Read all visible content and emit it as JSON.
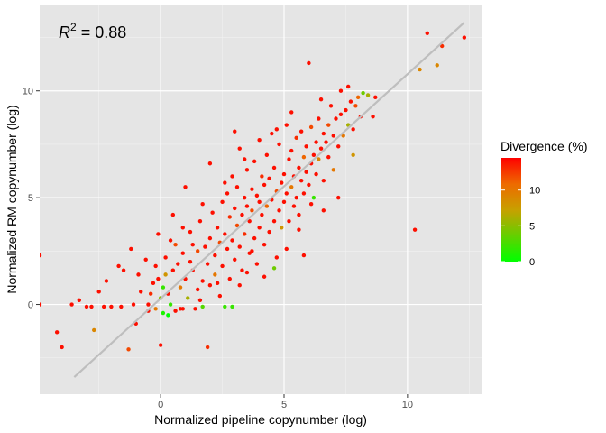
{
  "chart_data": {
    "type": "scatter",
    "xlabel": "Normalized pipeline copynumber (log)",
    "ylabel": "Normalized RM copynumber (log)",
    "xlim": [
      -4.9,
      13.0
    ],
    "ylim": [
      -4.2,
      14.0
    ],
    "x_ticks": [
      0,
      5,
      10
    ],
    "y_ticks": [
      0,
      5,
      10
    ],
    "x_tick_labels": [
      "0",
      "5",
      "10"
    ],
    "y_tick_labels": [
      "0",
      "5",
      "10"
    ],
    "grid": true,
    "background": "#e5e5e5",
    "annotation": {
      "base": "R",
      "sup": "2",
      "value": " = 0.88"
    },
    "fit_line": {
      "from": [
        -3.5,
        -3.4
      ],
      "to": [
        12.3,
        13.2
      ],
      "color": "#bebebe"
    },
    "legend": {
      "title": "Divergence (%)",
      "placement": "right",
      "range": [
        0,
        14.5
      ],
      "ticks": [
        0,
        5,
        10
      ],
      "tick_labels": [
        "0",
        "5",
        "10"
      ],
      "colors": [
        "#00ff00",
        "#ff0000"
      ]
    },
    "points": [
      [
        -4.9,
        2.3,
        14
      ],
      [
        -4.9,
        0.0,
        14
      ],
      [
        -4.2,
        -1.3,
        14
      ],
      [
        -4.0,
        -2.0,
        14
      ],
      [
        -3.3,
        0.2,
        14
      ],
      [
        -3.0,
        -0.1,
        14
      ],
      [
        -2.8,
        -0.1,
        14
      ],
      [
        -2.7,
        -1.2,
        9
      ],
      [
        -2.5,
        0.6,
        14
      ],
      [
        -2.3,
        -0.1,
        14
      ],
      [
        -2.0,
        -0.1,
        14
      ],
      [
        -1.7,
        1.8,
        14
      ],
      [
        -1.5,
        1.6,
        14
      ],
      [
        -1.6,
        -0.1,
        14
      ],
      [
        -1.3,
        -2.1,
        12
      ],
      [
        -1.1,
        0.0,
        14
      ],
      [
        -1.0,
        -0.9,
        14
      ],
      [
        -0.8,
        0.6,
        14
      ],
      [
        -0.6,
        2.1,
        14
      ],
      [
        -0.5,
        0.0,
        14
      ],
      [
        -0.4,
        0.5,
        13
      ],
      [
        -0.3,
        1.0,
        14
      ],
      [
        -0.2,
        -0.2,
        10
      ],
      [
        -0.1,
        1.2,
        14
      ],
      [
        -0.1,
        3.3,
        14
      ],
      [
        0.0,
        -1.9,
        14
      ],
      [
        0.0,
        0.3,
        5
      ],
      [
        0.1,
        -0.4,
        1
      ],
      [
        0.1,
        0.8,
        2
      ],
      [
        0.2,
        2.2,
        14
      ],
      [
        0.2,
        1.4,
        8
      ],
      [
        0.3,
        0.5,
        14
      ],
      [
        0.4,
        3.0,
        14
      ],
      [
        0.4,
        0.0,
        2
      ],
      [
        0.5,
        1.6,
        14
      ],
      [
        0.6,
        2.8,
        12
      ],
      [
        0.6,
        -0.3,
        14
      ],
      [
        0.7,
        1.9,
        14
      ],
      [
        0.8,
        0.8,
        10
      ],
      [
        0.9,
        2.4,
        14
      ],
      [
        0.9,
        -0.2,
        14
      ],
      [
        1.0,
        1.2,
        14
      ],
      [
        1.1,
        0.3,
        6
      ],
      [
        1.2,
        3.4,
        14
      ],
      [
        1.2,
        2.0,
        14
      ],
      [
        1.3,
        1.6,
        14
      ],
      [
        1.4,
        -0.2,
        14
      ],
      [
        1.5,
        2.5,
        12
      ],
      [
        1.5,
        0.7,
        14
      ],
      [
        1.6,
        3.9,
        14
      ],
      [
        1.7,
        1.1,
        14
      ],
      [
        1.7,
        -0.1,
        3
      ],
      [
        1.8,
        2.7,
        14
      ],
      [
        1.9,
        1.9,
        14
      ],
      [
        1.9,
        -2.0,
        13
      ],
      [
        2.0,
        3.1,
        14
      ],
      [
        2.0,
        0.9,
        14
      ],
      [
        2.1,
        4.3,
        14
      ],
      [
        2.2,
        2.3,
        14
      ],
      [
        2.2,
        1.4,
        10
      ],
      [
        2.3,
        3.6,
        14
      ],
      [
        2.4,
        0.4,
        14
      ],
      [
        2.4,
        2.9,
        12
      ],
      [
        2.5,
        4.8,
        14
      ],
      [
        2.5,
        1.8,
        14
      ],
      [
        2.6,
        3.3,
        14
      ],
      [
        2.6,
        -0.1,
        2
      ],
      [
        2.7,
        2.6,
        14
      ],
      [
        2.7,
        5.2,
        14
      ],
      [
        2.8,
        4.1,
        13
      ],
      [
        2.8,
        1.2,
        14
      ],
      [
        2.9,
        3.0,
        14
      ],
      [
        2.9,
        6.0,
        14
      ],
      [
        3.0,
        4.5,
        14
      ],
      [
        3.0,
        2.1,
        14
      ],
      [
        3.1,
        3.7,
        12
      ],
      [
        3.1,
        5.5,
        14
      ],
      [
        3.2,
        2.7,
        14
      ],
      [
        3.2,
        7.3,
        14
      ],
      [
        3.3,
        4.2,
        14
      ],
      [
        3.3,
        1.6,
        14
      ],
      [
        3.4,
        5.0,
        14
      ],
      [
        3.4,
        3.3,
        13
      ],
      [
        3.5,
        4.6,
        14
      ],
      [
        3.5,
        6.3,
        14
      ],
      [
        3.6,
        2.4,
        14
      ],
      [
        3.6,
        3.9,
        14
      ],
      [
        3.7,
        5.4,
        14
      ],
      [
        3.7,
        4.4,
        12
      ],
      [
        3.8,
        3.1,
        14
      ],
      [
        3.8,
        6.7,
        14
      ],
      [
        3.9,
        5.1,
        14
      ],
      [
        3.9,
        1.9,
        14
      ],
      [
        4.0,
        4.8,
        14
      ],
      [
        4.0,
        3.6,
        14
      ],
      [
        4.1,
        6.0,
        13
      ],
      [
        4.1,
        4.2,
        14
      ],
      [
        4.2,
        5.6,
        14
      ],
      [
        4.2,
        2.8,
        14
      ],
      [
        4.3,
        7.0,
        14
      ],
      [
        4.3,
        4.6,
        11
      ],
      [
        4.4,
        3.4,
        14
      ],
      [
        4.4,
        5.9,
        14
      ],
      [
        4.5,
        8.0,
        14
      ],
      [
        4.5,
        4.9,
        14
      ],
      [
        4.6,
        3.9,
        14
      ],
      [
        4.6,
        6.4,
        14
      ],
      [
        4.7,
        5.3,
        12
      ],
      [
        4.7,
        2.2,
        14
      ],
      [
        4.8,
        4.4,
        14
      ],
      [
        4.8,
        7.5,
        14
      ],
      [
        4.9,
        5.7,
        14
      ],
      [
        4.9,
        3.6,
        8
      ],
      [
        5.0,
        6.1,
        14
      ],
      [
        5.0,
        4.8,
        14
      ],
      [
        5.1,
        8.4,
        14
      ],
      [
        5.1,
        5.2,
        14
      ],
      [
        5.2,
        6.8,
        14
      ],
      [
        5.2,
        3.9,
        14
      ],
      [
        5.3,
        5.5,
        10
      ],
      [
        5.3,
        7.2,
        14
      ],
      [
        5.4,
        4.6,
        14
      ],
      [
        5.4,
        6.0,
        14
      ],
      [
        5.5,
        5.0,
        14
      ],
      [
        5.5,
        7.8,
        13
      ],
      [
        5.6,
        6.4,
        14
      ],
      [
        5.6,
        4.2,
        14
      ],
      [
        5.7,
        5.8,
        14
      ],
      [
        5.7,
        8.1,
        14
      ],
      [
        5.8,
        6.9,
        11
      ],
      [
        5.8,
        5.2,
        14
      ],
      [
        5.9,
        6.2,
        14
      ],
      [
        5.9,
        7.4,
        14
      ],
      [
        6.0,
        5.6,
        14
      ],
      [
        6.0,
        11.3,
        14
      ],
      [
        6.1,
        6.6,
        14
      ],
      [
        6.1,
        8.3,
        12
      ],
      [
        6.2,
        7.0,
        14
      ],
      [
        6.2,
        5.0,
        2
      ],
      [
        6.3,
        7.6,
        14
      ],
      [
        6.3,
        6.1,
        14
      ],
      [
        6.4,
        8.7,
        14
      ],
      [
        6.4,
        6.8,
        9
      ],
      [
        6.5,
        7.3,
        14
      ],
      [
        6.6,
        8.0,
        14
      ],
      [
        6.6,
        5.8,
        14
      ],
      [
        6.7,
        7.6,
        14
      ],
      [
        6.8,
        8.4,
        12
      ],
      [
        6.8,
        6.9,
        14
      ],
      [
        6.9,
        9.3,
        14
      ],
      [
        7.0,
        7.9,
        14
      ],
      [
        7.0,
        6.3,
        10
      ],
      [
        7.1,
        8.7,
        14
      ],
      [
        7.2,
        7.4,
        14
      ],
      [
        7.3,
        8.9,
        14
      ],
      [
        7.3,
        10.0,
        14
      ],
      [
        7.4,
        7.9,
        10
      ],
      [
        7.5,
        9.1,
        14
      ],
      [
        7.6,
        8.4,
        6
      ],
      [
        7.7,
        9.5,
        14
      ],
      [
        7.8,
        7.0,
        8
      ],
      [
        7.8,
        8.2,
        14
      ],
      [
        7.9,
        9.3,
        12
      ],
      [
        8.0,
        9.7,
        11
      ],
      [
        8.1,
        8.8,
        14
      ],
      [
        8.2,
        9.9,
        4
      ],
      [
        8.4,
        9.8,
        6
      ],
      [
        8.6,
        8.8,
        14
      ],
      [
        8.7,
        9.7,
        14
      ],
      [
        10.3,
        3.5,
        14
      ],
      [
        10.5,
        11.0,
        9
      ],
      [
        10.8,
        12.7,
        14
      ],
      [
        11.2,
        11.2,
        9
      ],
      [
        11.4,
        12.1,
        13
      ],
      [
        12.3,
        12.5,
        14
      ],
      [
        -0.5,
        -0.3,
        14
      ],
      [
        0.3,
        -0.5,
        0
      ],
      [
        0.8,
        -0.2,
        14
      ],
      [
        1.6,
        0.2,
        14
      ],
      [
        2.9,
        -0.1,
        2
      ],
      [
        3.2,
        0.9,
        14
      ],
      [
        3.5,
        1.5,
        14
      ],
      [
        4.6,
        1.7,
        4
      ],
      [
        5.1,
        2.6,
        14
      ],
      [
        5.6,
        3.5,
        14
      ],
      [
        6.6,
        4.4,
        14
      ],
      [
        7.2,
        5.0,
        14
      ],
      [
        6.1,
        4.7,
        14
      ],
      [
        1.3,
        2.8,
        14
      ],
      [
        2.3,
        1.0,
        14
      ],
      [
        3.7,
        2.5,
        14
      ],
      [
        4.2,
        1.3,
        14
      ],
      [
        5.8,
        2.3,
        14
      ],
      [
        -0.2,
        1.8,
        14
      ],
      [
        0.9,
        3.6,
        14
      ],
      [
        1.7,
        4.7,
        14
      ],
      [
        2.6,
        5.7,
        14
      ],
      [
        3.4,
        6.8,
        14
      ],
      [
        4.0,
        7.7,
        14
      ],
      [
        4.7,
        8.2,
        14
      ],
      [
        5.3,
        9.0,
        14
      ],
      [
        6.5,
        9.6,
        14
      ],
      [
        7.6,
        10.2,
        14
      ],
      [
        0.5,
        4.2,
        14
      ],
      [
        1.0,
        5.5,
        14
      ],
      [
        2.0,
        6.6,
        14
      ],
      [
        3.0,
        8.1,
        14
      ],
      [
        -2.2,
        1.1,
        14
      ],
      [
        -1.2,
        2.6,
        14
      ],
      [
        -0.9,
        1.4,
        14
      ],
      [
        -3.6,
        0.0,
        14
      ]
    ]
  }
}
